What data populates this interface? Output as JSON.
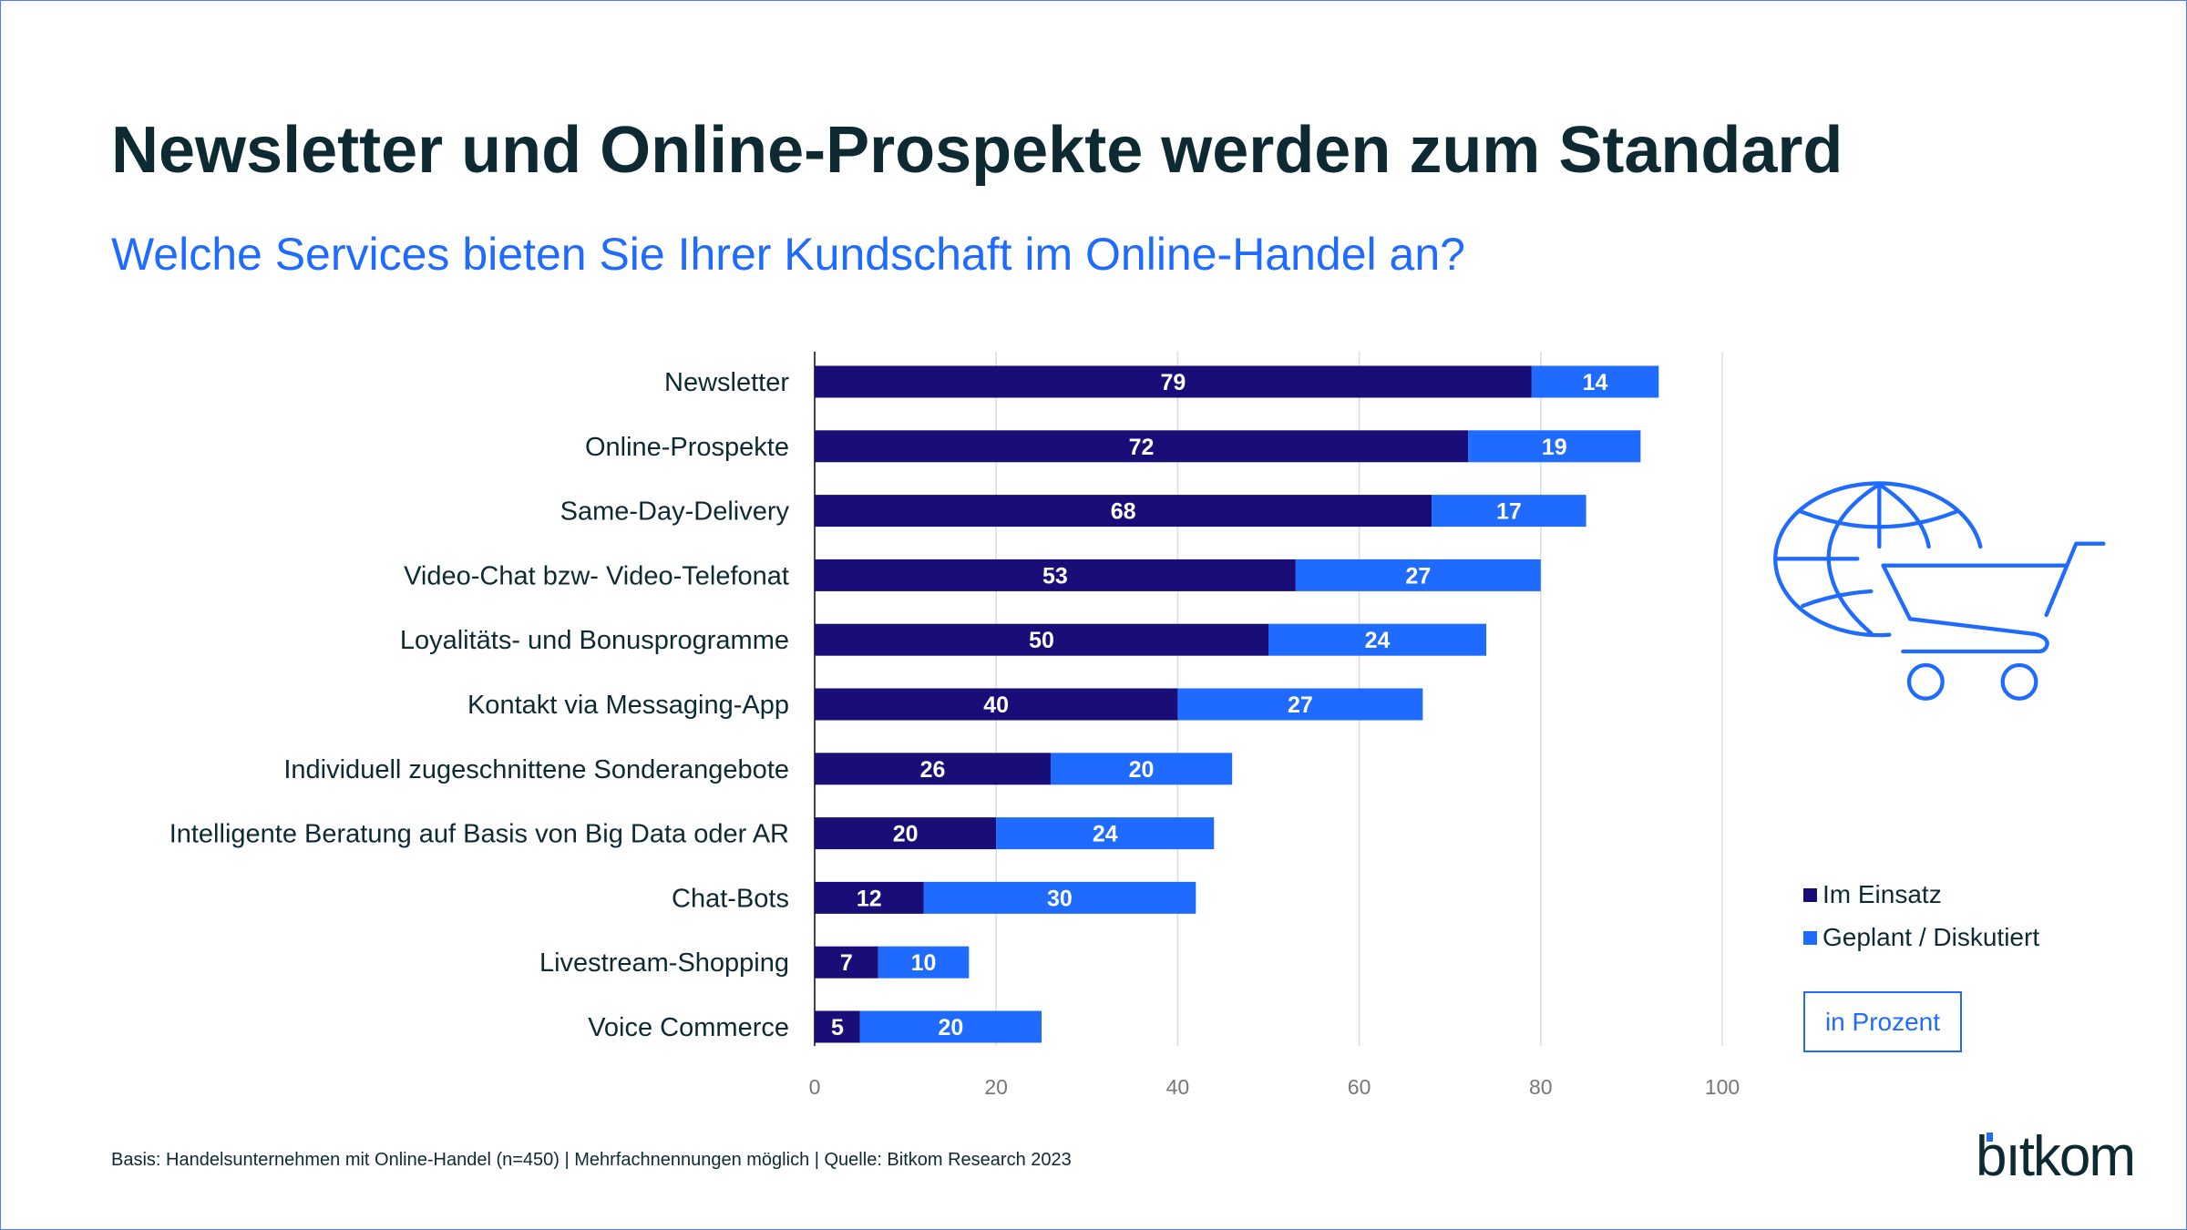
{
  "header": {
    "title": "Newsletter und Online-Prospekte werden zum Standard",
    "subtitle": "Welche Services bieten Sie Ihrer Kundschaft im Online-Handel an?"
  },
  "chart_data": {
    "type": "bar",
    "orientation": "horizontal",
    "stacked": true,
    "categories": [
      "Newsletter",
      "Online-Prospekte",
      "Same-Day-Delivery",
      "Video-Chat bzw- Video-Telefonat",
      "Loyalitäts- und Bonusprogramme",
      "Kontakt via Messaging-App",
      "Individuell zugeschnittene Sonderangebote",
      "Intelligente Beratung auf Basis von Big Data oder AR",
      "Chat-Bots",
      "Livestream-Shopping",
      "Voice Commerce"
    ],
    "series": [
      {
        "name": "Im Einsatz",
        "color": "#190d78",
        "values": [
          79,
          72,
          68,
          53,
          50,
          40,
          26,
          20,
          12,
          7,
          5
        ]
      },
      {
        "name": "Geplant / Diskutiert",
        "color": "#1f6bff",
        "values": [
          14,
          19,
          17,
          27,
          24,
          27,
          20,
          24,
          30,
          10,
          20
        ]
      }
    ],
    "xlim": [
      0,
      100
    ],
    "xticks": [
      "0",
      "20",
      "40",
      "60",
      "80",
      "100"
    ],
    "grid": true,
    "legend": "right",
    "unit_label": "in Prozent"
  },
  "footer": {
    "source": "Basis: Handelsunternehmen mit Online-Handel (n=450) | Mehrfachnennungen möglich | Quelle: Bitkom Research 2023",
    "logo": "bitkom"
  },
  "icon": "globe-shopping-cart-icon"
}
